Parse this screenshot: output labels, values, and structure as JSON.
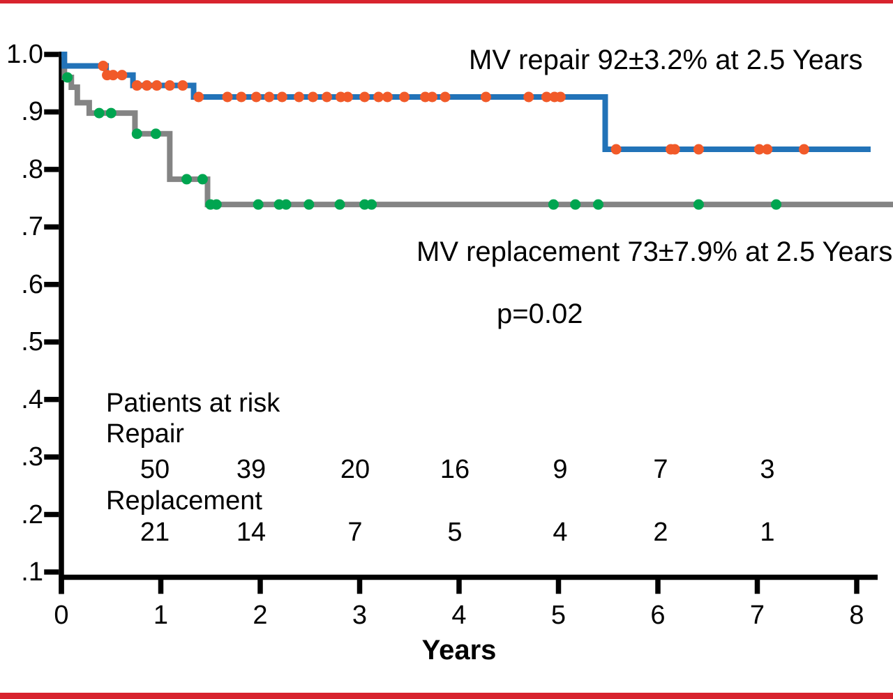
{
  "figure": {
    "background": "#ffffff",
    "border_color": "#d8232e",
    "axis_color": "#000000"
  },
  "annotations": {
    "repair": "MV repair 92±3.2% at 2.5 Years",
    "replacement": "MV replacement 73±7.9% at 2.5 Years",
    "p_value": "p=0.02"
  },
  "axes": {
    "x": {
      "title": "Years",
      "tick_labels": [
        "0",
        "1",
        "2",
        "3",
        "4",
        "5",
        "6",
        "7",
        "8"
      ],
      "tick_values": [
        0,
        1,
        2,
        3,
        4,
        5,
        6,
        7,
        8
      ],
      "range": [
        0,
        8
      ]
    },
    "y": {
      "tick_labels": [
        "1.0",
        ".9",
        ".8",
        ".7",
        ".6",
        ".5",
        ".4",
        ".3",
        ".2",
        ".1"
      ],
      "tick_values": [
        1.0,
        0.9,
        0.8,
        0.7,
        0.6,
        0.5,
        0.4,
        0.3,
        0.2,
        0.1
      ],
      "range": [
        0.1,
        1.0
      ]
    }
  },
  "risk_table": {
    "title": "Patients at risk",
    "rows": [
      {
        "label": "Repair",
        "values": [
          "50",
          "39",
          "20",
          "16",
          "9",
          "7",
          "3"
        ]
      },
      {
        "label": "Replacement",
        "values": [
          "21",
          "14",
          "7",
          "5",
          "4",
          "2",
          "1"
        ]
      }
    ]
  },
  "chart_data": {
    "type": "line",
    "subtype": "kaplan-meier-step",
    "title": "",
    "xlabel": "Years",
    "ylabel": "",
    "xlim": [
      0,
      8.4
    ],
    "ylim": [
      0.1,
      1.0
    ],
    "grid": false,
    "legend_position": "annotations-inline",
    "series": [
      {
        "name": "MV repair",
        "line_color": "#2273b8",
        "censor_color": "#f15a29",
        "steps": [
          [
            0,
            1.0
          ],
          [
            0.03,
            0.98
          ],
          [
            0.45,
            0.964
          ],
          [
            0.72,
            0.946
          ],
          [
            1.33,
            0.926
          ],
          [
            5.47,
            0.835
          ]
        ],
        "end_x": 8.14,
        "censor_times": [
          0.42,
          0.46,
          0.52,
          0.61,
          0.76,
          0.86,
          0.96,
          1.09,
          1.22,
          1.38,
          1.67,
          1.81,
          1.96,
          2.09,
          2.22,
          2.39,
          2.53,
          2.67,
          2.81,
          2.88,
          3.05,
          3.19,
          3.28,
          3.45,
          3.66,
          3.73,
          3.86,
          4.27,
          4.7,
          4.88,
          4.96,
          5.02,
          5.58,
          6.13,
          6.17,
          6.41,
          7.02,
          7.1,
          7.47
        ],
        "value_at_2_5_years": "92±3.2%"
      },
      {
        "name": "MV replacement",
        "line_color": "#848484",
        "censor_color": "#00a550",
        "steps": [
          [
            0,
            1.0
          ],
          [
            0.03,
            0.96
          ],
          [
            0.1,
            0.943
          ],
          [
            0.16,
            0.916
          ],
          [
            0.28,
            0.898
          ],
          [
            0.74,
            0.862
          ],
          [
            1.09,
            0.783
          ],
          [
            1.47,
            0.739
          ]
        ],
        "end_x": 8.37,
        "censor_times": [
          0.06,
          0.38,
          0.5,
          0.76,
          0.95,
          1.26,
          1.42,
          1.5,
          1.56,
          1.98,
          2.19,
          2.26,
          2.49,
          2.8,
          3.05,
          3.12,
          4.95,
          5.17,
          5.4,
          6.41,
          7.19
        ],
        "value_at_2_5_years": "73±7.9%"
      }
    ],
    "p_value": 0.02
  }
}
